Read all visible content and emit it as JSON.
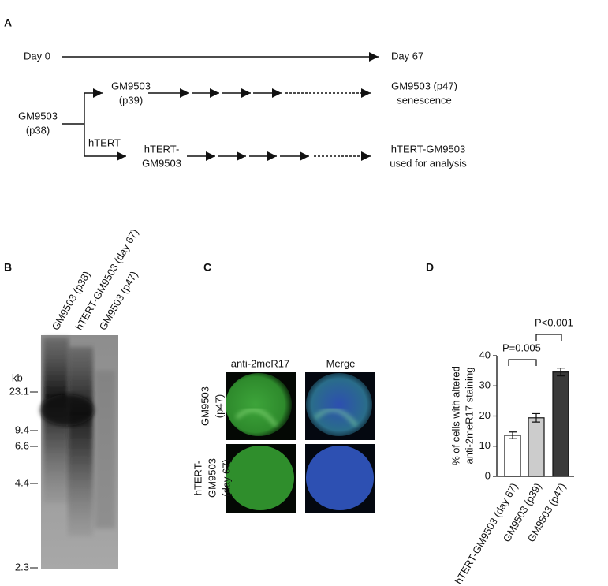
{
  "panel_letters": [
    "A",
    "B",
    "C",
    "D"
  ],
  "panel_a": {
    "day_start": "Day 0",
    "day_end": "Day 67",
    "parent": [
      "GM9503",
      "(p38)"
    ],
    "branch_label": "hTERT",
    "row1_start": [
      "GM9503",
      "(p39)"
    ],
    "row1_end": [
      "GM9503 (p47)",
      "senescence"
    ],
    "row2_start": [
      "hTERT-",
      "GM9503"
    ],
    "row2_end": [
      "hTERT-GM9503",
      "used for analysis"
    ]
  },
  "panel_b": {
    "lanes": [
      "GM9503 (p38)",
      "hTERT-GM9503 (day 67)",
      "GM9503 (p47)"
    ],
    "unit": "kb",
    "markers": [
      "23.1",
      "9.4",
      "6.6",
      "4.4",
      "2.3"
    ]
  },
  "panel_c": {
    "columns": [
      "anti-2meR17",
      "Merge"
    ],
    "rows": [
      [
        "GM9503",
        "(p47)"
      ],
      [
        "hTERT-",
        "GM9503",
        "(day 67)"
      ]
    ]
  },
  "chart_data": {
    "type": "bar",
    "ylabel": [
      "% of cells with altered",
      "anti-2meR17 staining"
    ],
    "categories": [
      "hTERT-GM9503 (day 67)",
      "GM9503 (p39)",
      "GM9503 (p47)"
    ],
    "values": [
      13.6,
      19.4,
      34.6
    ],
    "errors": [
      1.1,
      1.4,
      1.3
    ],
    "colors": [
      "#ffffff",
      "#cccccc",
      "#3a3a3a"
    ],
    "ylim": [
      0,
      40
    ],
    "yticks": [
      0,
      10,
      20,
      30,
      40
    ],
    "annotations": [
      "P=0.005",
      "P<0.001"
    ]
  }
}
